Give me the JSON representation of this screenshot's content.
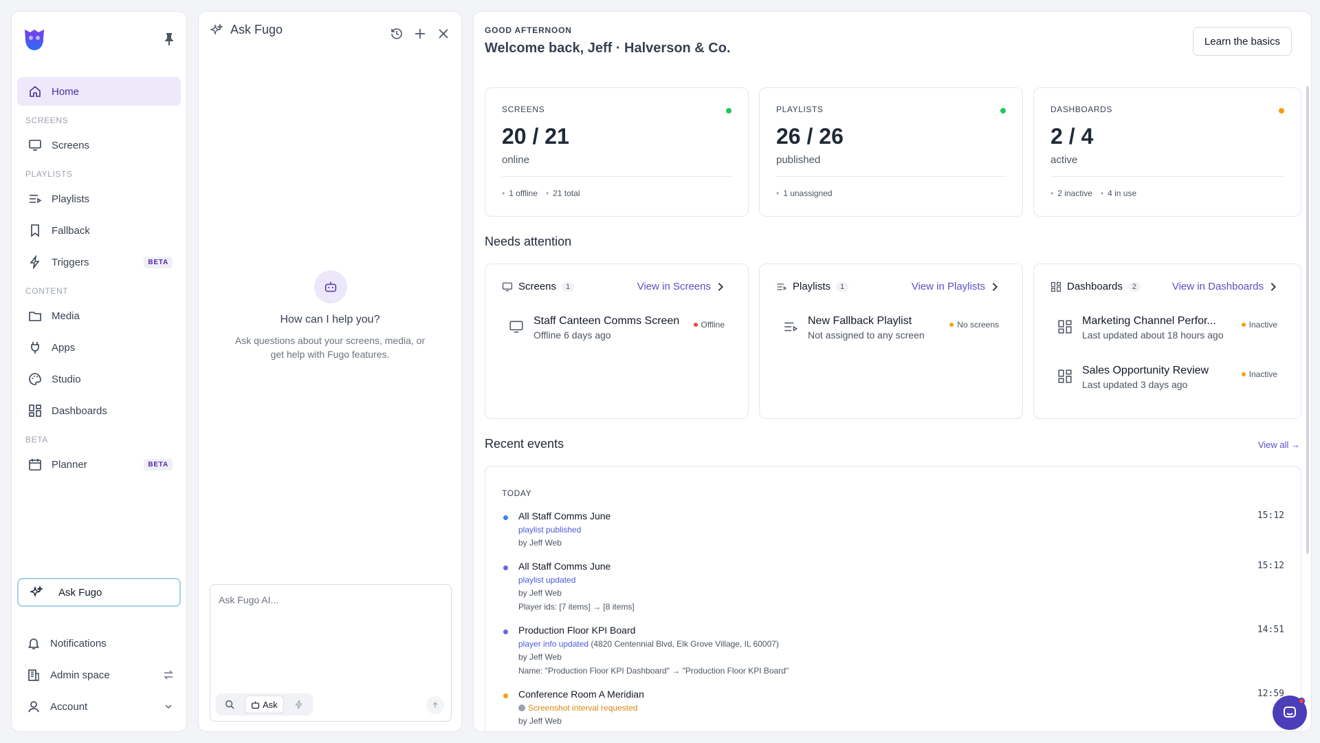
{
  "sidebar": {
    "home": "Home",
    "sections": {
      "screens": "SCREENS",
      "playlists": "PLAYLISTS",
      "content": "CONTENT",
      "beta": "BETA"
    },
    "items": {
      "screens": "Screens",
      "playlists": "Playlists",
      "fallback": "Fallback",
      "triggers": "Triggers",
      "media": "Media",
      "apps": "Apps",
      "studio": "Studio",
      "dashboards": "Dashboards",
      "planner": "Planner"
    },
    "beta_badge": "BETA",
    "ask_fugo": "Ask Fugo",
    "footer": {
      "notifications": "Notifications",
      "admin_space": "Admin space",
      "account": "Account"
    }
  },
  "ask_panel": {
    "title": "Ask Fugo",
    "help_title": "How can I help you?",
    "help_sub": "Ask questions about your screens, media, or get help with Fugo features.",
    "placeholder": "Ask Fugo AI...",
    "ask_chip": "Ask"
  },
  "main": {
    "greeting_small": "GOOD AFTERNOON",
    "greeting_big": "Welcome back, Jeff · Halverson & Co.",
    "learn_button": "Learn the basics",
    "stats": [
      {
        "label": "SCREENS",
        "value": "20 / 21",
        "sub": "online",
        "meta": [
          "1 offline",
          "21 total"
        ],
        "dot": "#22c55e"
      },
      {
        "label": "PLAYLISTS",
        "value": "26 / 26",
        "sub": "published",
        "meta": [
          "1 unassigned"
        ],
        "dot": "#22c55e"
      },
      {
        "label": "DASHBOARDS",
        "value": "2 / 4",
        "sub": "active",
        "meta": [
          "2 inactive",
          "4 in use"
        ],
        "dot": "#f59e0b"
      }
    ],
    "needs_attention": "Needs attention",
    "attention": [
      {
        "title": "Screens",
        "count": "1",
        "link": "View in Screens",
        "items": [
          {
            "name": "Staff Canteen Comms Screen",
            "desc": "Offline 6 days ago",
            "status": "Offline",
            "color": "#ef4444"
          }
        ]
      },
      {
        "title": "Playlists",
        "count": "1",
        "link": "View in Playlists",
        "items": [
          {
            "name": "New Fallback Playlist",
            "desc": "Not assigned to any screen",
            "status": "No screens",
            "color": "#f59e0b"
          }
        ]
      },
      {
        "title": "Dashboards",
        "count": "2",
        "link": "View in Dashboards",
        "items": [
          {
            "name": "Marketing Channel Perfor...",
            "desc": "Last updated about 18 hours ago",
            "status": "Inactive",
            "color": "#f59e0b"
          },
          {
            "name": "Sales Opportunity Review",
            "desc": "Last updated 3 days ago",
            "status": "Inactive",
            "color": "#f59e0b"
          }
        ]
      }
    ],
    "recent_events": "Recent events",
    "view_all": "View all →",
    "events_day": "TODAY",
    "events": [
      {
        "title": "All Staff Comms June",
        "action": "playlist published",
        "by": "by Jeff Web",
        "extra": "",
        "time": "15:12",
        "color": "#3b82f6"
      },
      {
        "title": "All Staff Comms June",
        "action": "playlist updated",
        "by": "by Jeff Web",
        "extra": "Player ids: [7 items] → [8 items]",
        "time": "15:12",
        "color": "#6366f1"
      },
      {
        "title": "Production Floor KPI Board",
        "action": "player info updated",
        "action_suffix": " (4820 Centennial Blvd, Elk Grove Village, IL 60007)",
        "by": "by Jeff Web",
        "extra": "Name: \"Production Floor KPI Dashboard\" → \"Production Floor KPI Board\"",
        "time": "14:51",
        "color": "#6366f1"
      },
      {
        "title": "Conference Room A Meridian",
        "action": "Screenshot interval requested",
        "by": "by Jeff Web",
        "extra": "",
        "time": "12:59",
        "color": "#f59e0b"
      }
    ]
  }
}
